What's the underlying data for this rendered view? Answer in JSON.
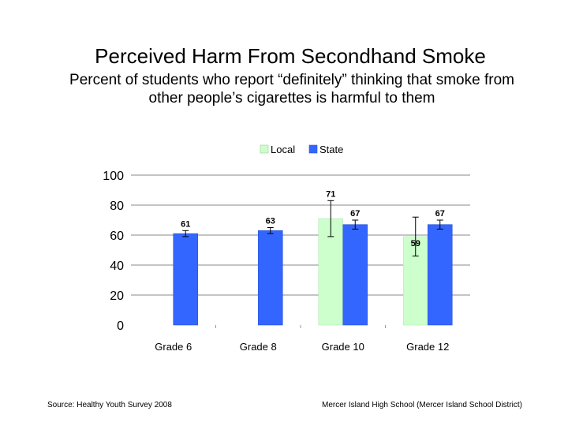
{
  "title": "Perceived Harm From Secondhand Smoke",
  "subtitle_line1": "Percent of students who report “definitely” thinking that smoke from",
  "subtitle_line2": "other people’s cigarettes is harmful to them",
  "source": "Source: Healthy Youth Survey 2008",
  "footer_right": "Mercer Island High School (Mercer Island School District)",
  "chart_data": {
    "type": "bar",
    "categories": [
      "Grade 6",
      "Grade 8",
      "Grade 10",
      "Grade 12"
    ],
    "series": [
      {
        "name": "Local",
        "color": "#ccffcc",
        "values": [
          null,
          null,
          71,
          59
        ],
        "err": [
          null,
          null,
          12,
          13
        ]
      },
      {
        "name": "State",
        "color": "#3366ff",
        "values": [
          61,
          63,
          67,
          67
        ],
        "err": [
          2,
          2,
          3,
          3
        ]
      }
    ],
    "ylim": [
      0,
      100
    ],
    "yticks": [
      0,
      20,
      40,
      60,
      80,
      100
    ],
    "grid": true,
    "legend": "top-center",
    "xlabel": "",
    "ylabel": ""
  }
}
